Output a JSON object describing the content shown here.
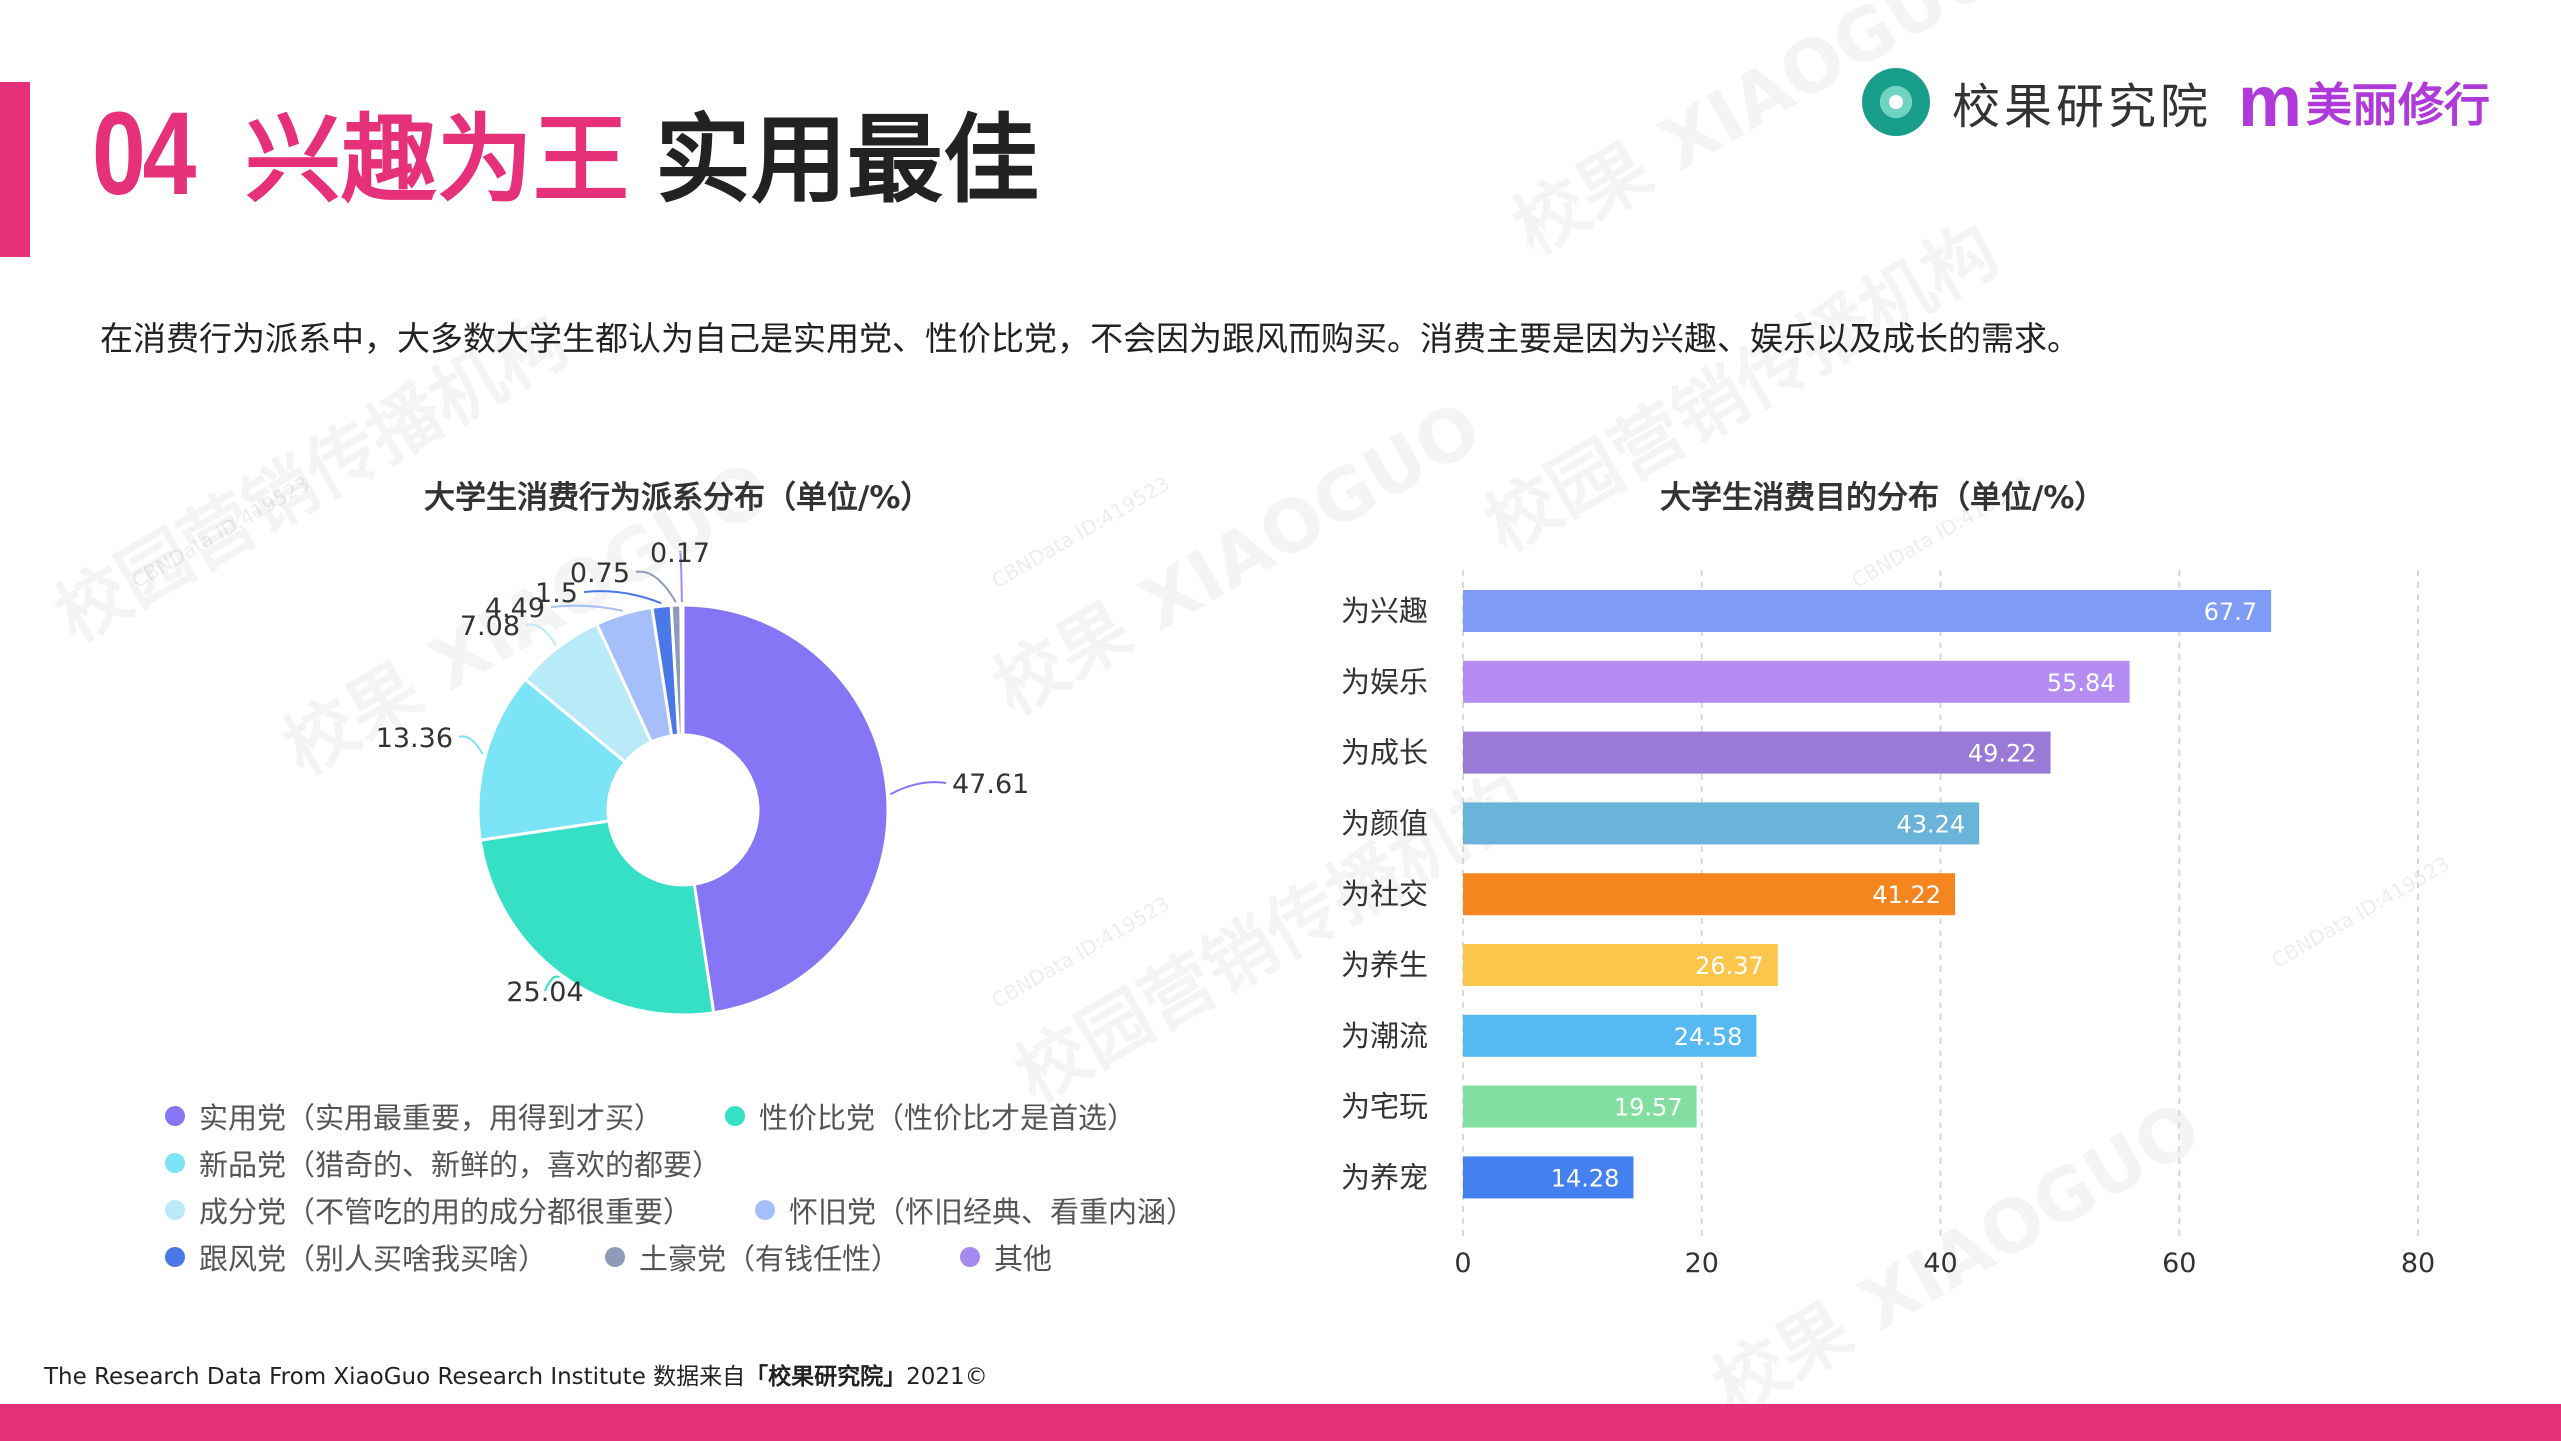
{
  "header": {
    "number": "04",
    "title_highlight": "兴趣为王",
    "title_rest": "实用最佳"
  },
  "brand": {
    "name": "校果研究院",
    "partner_mark": "m",
    "partner_name": "美丽修行"
  },
  "intro_text": "在消费行为派系中，大多数大学生都认为自己是实用党、性价比党，不会因为跟风而购买。消费主要是因为兴趣、娱乐以及成长的需求。",
  "watermarks": {
    "main": "校果 XIAOGUO",
    "org": "校园营销传播机构",
    "id": "CBNData ID:419523"
  },
  "pie_legend": [
    {
      "label": "实用党（实用最重要，用得到才买）",
      "color": "#8676f5"
    },
    {
      "label": "性价比党（性价比才是首选）",
      "color": "#35e0c5"
    },
    {
      "label": "新品党（猎奇的、新鲜的，喜欢的都要）",
      "color": "#7ce4f7"
    },
    {
      "label": "成分党（不管吃的用的成分都很重要）",
      "color": "#b9eaf7"
    },
    {
      "label": "怀旧党（怀旧经典、看重内涵）",
      "color": "#a5bffa"
    },
    {
      "label": "跟风党（别人买啥我买啥）",
      "color": "#4a78e8"
    },
    {
      "label": "土豪党（有钱任性）",
      "color": "#8d9bb8"
    },
    {
      "label": "其他",
      "color": "#a58af0"
    }
  ],
  "source": {
    "prefix": "The Research Data From XiaoGuo Research Institute 数据来自",
    "name": "「校果研究院」",
    "suffix": "2021©"
  },
  "chart_data": [
    {
      "type": "pie",
      "title": "大学生消费行为派系分布（单位/%）",
      "categories": [
        "实用党",
        "性价比党",
        "新品党",
        "成分党",
        "怀旧党",
        "跟风党",
        "土豪党",
        "其他"
      ],
      "values": [
        47.61,
        25.04,
        13.36,
        7.08,
        4.49,
        1.5,
        0.75,
        0.17
      ],
      "labels": [
        "47.61",
        "25.04",
        "13.36",
        "7.08",
        "4.49",
        "1.5",
        "0.75",
        "0.17"
      ],
      "colors": [
        "#8676f5",
        "#35e0c5",
        "#7ce4f7",
        "#b9eaf7",
        "#a5bffa",
        "#4a78e8",
        "#8d9bb8",
        "#a58af0"
      ],
      "donut": true
    },
    {
      "type": "bar",
      "orientation": "horizontal",
      "title": "大学生消费目的分布（单位/%）",
      "categories": [
        "为兴趣",
        "为娱乐",
        "为成长",
        "为颜值",
        "为社交",
        "为养生",
        "为潮流",
        "为宅玩",
        "为养宠"
      ],
      "values": [
        67.7,
        55.84,
        49.22,
        43.24,
        41.22,
        26.37,
        24.58,
        19.57,
        14.28
      ],
      "colors": [
        "#7f9cf7",
        "#b48cf2",
        "#9a7ad6",
        "#6ab3d9",
        "#f5861f",
        "#fcc54b",
        "#57b9f2",
        "#82dfa0",
        "#4580f0"
      ],
      "xlim": [
        0,
        80
      ],
      "xticks": [
        0,
        20,
        40,
        60,
        80
      ],
      "grid": "vertical dashed"
    }
  ]
}
